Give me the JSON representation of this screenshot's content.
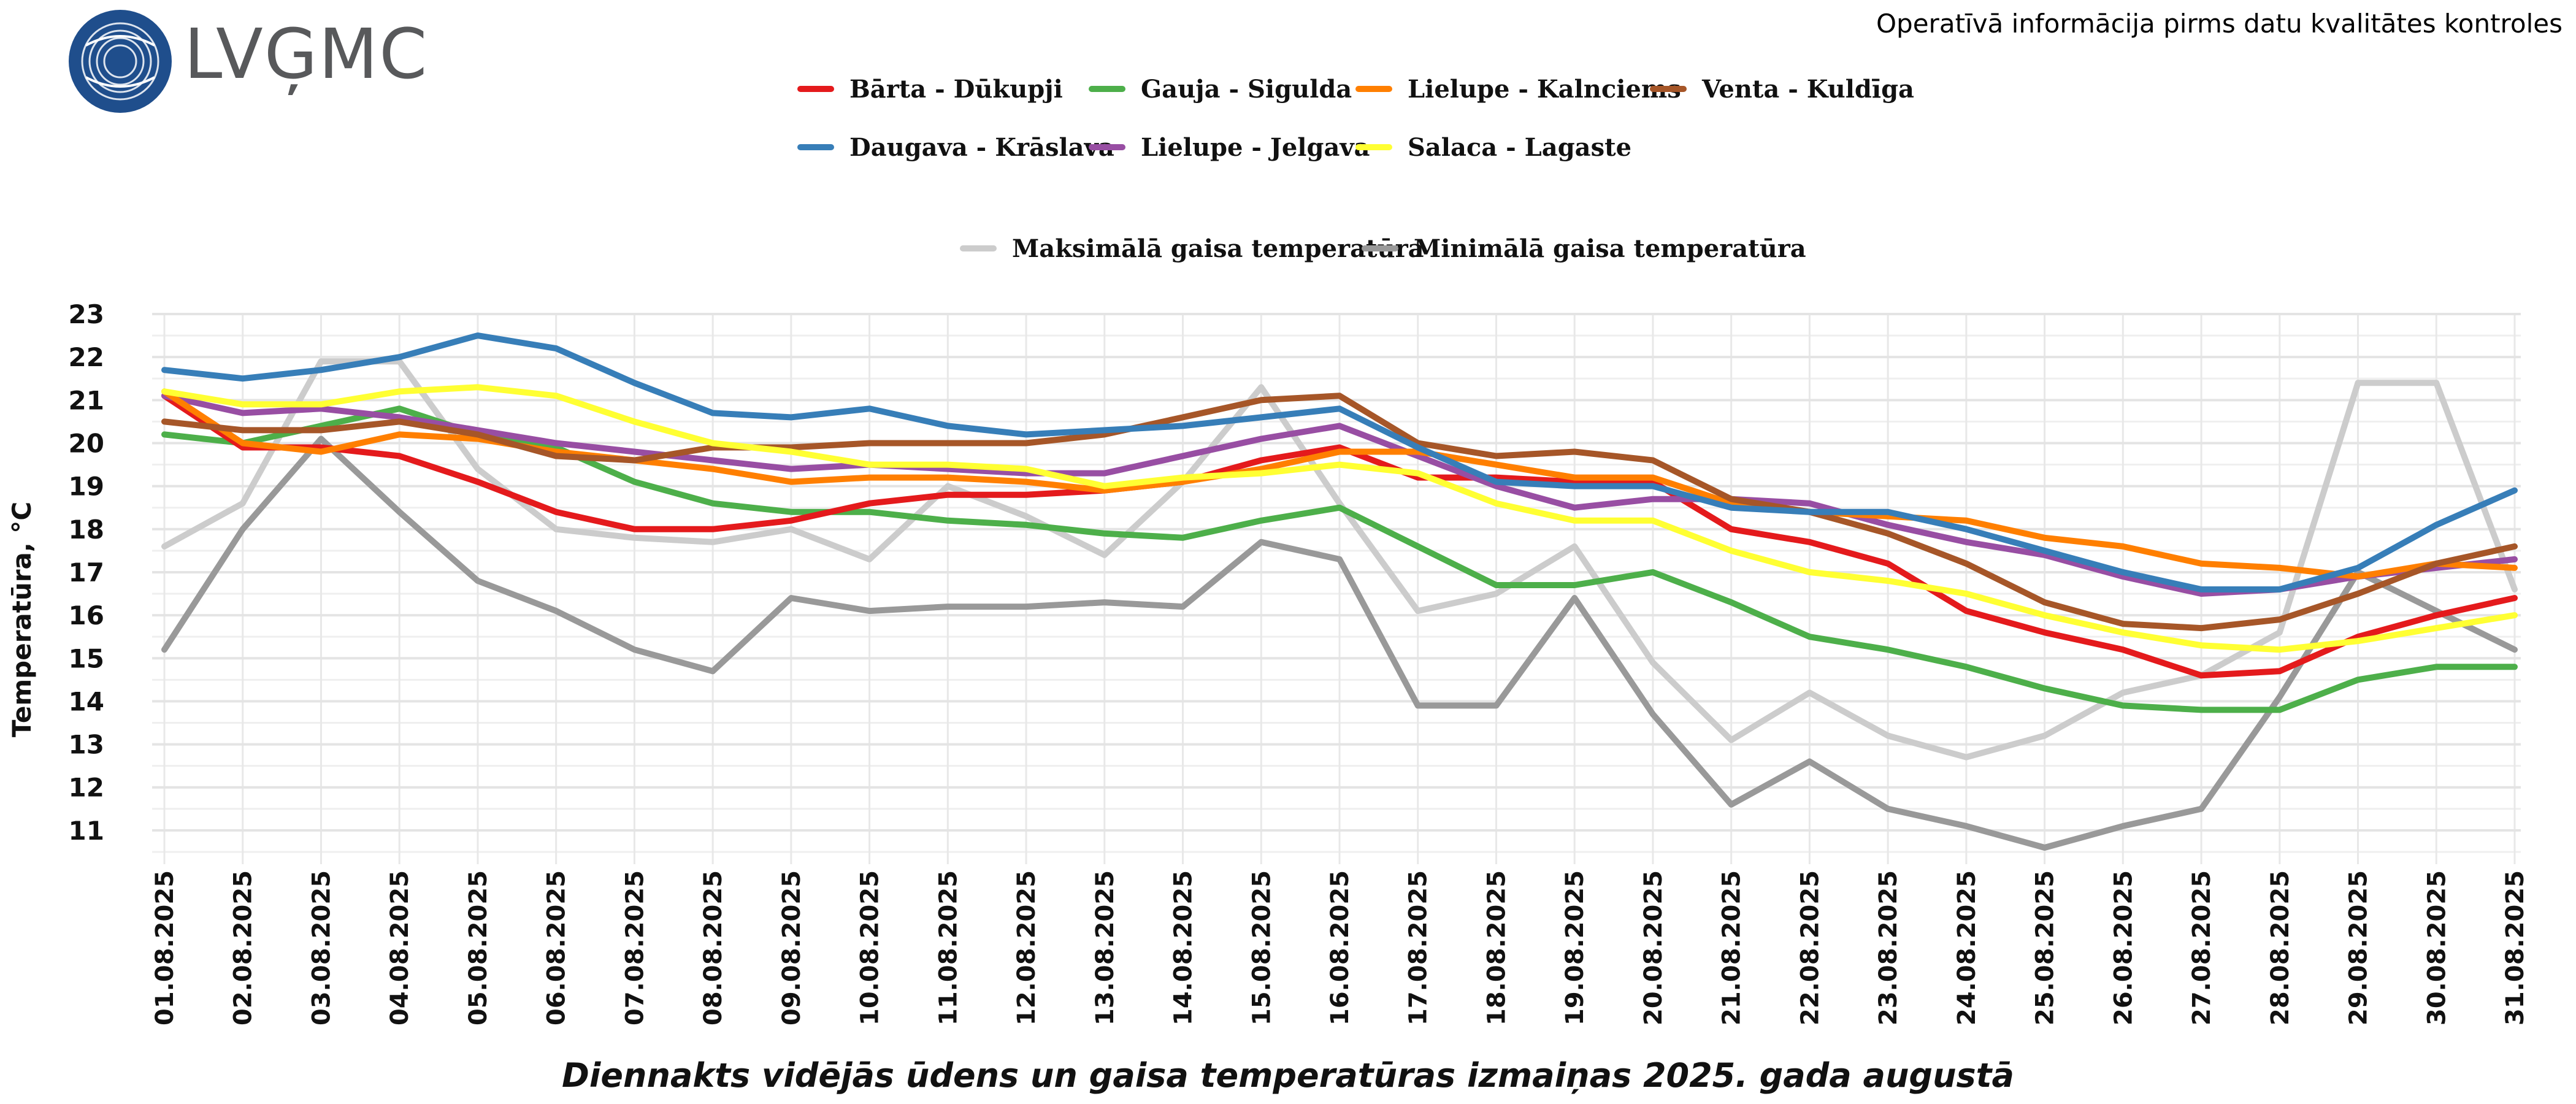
{
  "header": {
    "logo_text": "LVĢMC",
    "subtitle": "Operatīvā informācija pirms datu kvalitātes kontroles"
  },
  "chart_data": {
    "type": "line",
    "title": "Diennakts vidējās ūdens un gaisa temperatūras izmaiņas 2025. gada augustā",
    "ylabel": "Temperatūra, °C",
    "xlabel": "",
    "ylim": [
      10.3,
      23
    ],
    "yticks": [
      11,
      12,
      13,
      14,
      15,
      16,
      17,
      18,
      19,
      20,
      21,
      22,
      23
    ],
    "grid": true,
    "legend_position": "top-center",
    "categories": [
      "01.08.2025",
      "02.08.2025",
      "03.08.2025",
      "04.08.2025",
      "05.08.2025",
      "06.08.2025",
      "07.08.2025",
      "08.08.2025",
      "09.08.2025",
      "10.08.2025",
      "11.08.2025",
      "12.08.2025",
      "13.08.2025",
      "14.08.2025",
      "15.08.2025",
      "16.08.2025",
      "17.08.2025",
      "18.08.2025",
      "19.08.2025",
      "20.08.2025",
      "21.08.2025",
      "22.08.2025",
      "23.08.2025",
      "24.08.2025",
      "25.08.2025",
      "26.08.2025",
      "27.08.2025",
      "28.08.2025",
      "29.08.2025",
      "30.08.2025",
      "31.08.2025"
    ],
    "series": [
      {
        "name": "Maksimālā gaisa temperatūra",
        "color": "#cccccc",
        "group": "air",
        "values": [
          17.6,
          18.6,
          21.9,
          21.9,
          19.4,
          18.0,
          17.8,
          17.7,
          18.0,
          17.3,
          19.0,
          18.3,
          17.4,
          19.1,
          21.3,
          18.6,
          16.1,
          16.5,
          17.6,
          14.9,
          13.1,
          14.2,
          13.2,
          12.7,
          13.2,
          14.2,
          14.6,
          15.6,
          21.4,
          21.4,
          16.6
        ]
      },
      {
        "name": "Minimālā gaisa temperatūra",
        "color": "#999999",
        "group": "air",
        "values": [
          15.2,
          18.0,
          20.1,
          18.4,
          16.8,
          16.1,
          15.2,
          14.7,
          16.4,
          16.1,
          16.2,
          16.2,
          16.3,
          16.2,
          17.7,
          17.3,
          13.9,
          13.9,
          16.4,
          13.7,
          11.6,
          12.6,
          11.5,
          11.1,
          10.6,
          11.1,
          11.5,
          14.1,
          17.0,
          16.1,
          15.2
        ]
      },
      {
        "name": "Gauja - Sigulda",
        "color": "#4daf4a",
        "group": "water",
        "values": [
          20.2,
          20.0,
          20.4,
          20.8,
          20.2,
          19.9,
          19.1,
          18.6,
          18.4,
          18.4,
          18.2,
          18.1,
          17.9,
          17.8,
          18.2,
          18.5,
          17.6,
          16.7,
          16.7,
          17.0,
          16.3,
          15.5,
          15.2,
          14.8,
          14.3,
          13.9,
          13.8,
          13.8,
          14.5,
          14.8,
          14.8
        ]
      },
      {
        "name": "Bārta - Dūkupji",
        "color": "#e41a1c",
        "group": "water",
        "values": [
          21.1,
          19.9,
          19.9,
          19.7,
          19.1,
          18.4,
          18.0,
          18.0,
          18.2,
          18.6,
          18.8,
          18.8,
          18.9,
          19.1,
          19.6,
          19.9,
          19.2,
          19.2,
          19.1,
          19.1,
          18.0,
          17.7,
          17.2,
          16.1,
          15.6,
          15.2,
          14.6,
          14.7,
          15.5,
          16.0,
          16.4
        ]
      },
      {
        "name": "Lielupe - Jelgava",
        "color": "#984ea3",
        "group": "water",
        "values": [
          21.1,
          20.7,
          20.8,
          20.6,
          20.3,
          20.0,
          19.8,
          19.6,
          19.4,
          19.5,
          19.4,
          19.3,
          19.3,
          19.7,
          20.1,
          20.4,
          19.7,
          19.0,
          18.5,
          18.7,
          18.7,
          18.6,
          18.1,
          17.7,
          17.4,
          16.9,
          16.5,
          16.6,
          16.9,
          17.1,
          17.3
        ]
      },
      {
        "name": "Lielupe - Kalnciems",
        "color": "#ff7f00",
        "group": "water",
        "values": [
          21.2,
          20.0,
          19.8,
          20.2,
          20.1,
          19.8,
          19.6,
          19.4,
          19.1,
          19.2,
          19.2,
          19.1,
          18.9,
          19.1,
          19.4,
          19.8,
          19.8,
          19.5,
          19.2,
          19.2,
          18.6,
          18.4,
          18.3,
          18.2,
          17.8,
          17.6,
          17.2,
          17.1,
          16.9,
          17.2,
          17.1
        ]
      },
      {
        "name": "Venta - Kuldīga",
        "color": "#a65628",
        "group": "water",
        "values": [
          20.5,
          20.3,
          20.3,
          20.5,
          20.2,
          19.7,
          19.6,
          19.9,
          19.9,
          20.0,
          20.0,
          20.0,
          20.2,
          20.6,
          21.0,
          21.1,
          20.0,
          19.7,
          19.8,
          19.6,
          18.7,
          18.4,
          17.9,
          17.2,
          16.3,
          15.8,
          15.7,
          15.9,
          16.5,
          17.2,
          17.6
        ]
      },
      {
        "name": "Daugava - Krāslava",
        "color": "#377eb8",
        "group": "water",
        "values": [
          21.7,
          21.5,
          21.7,
          22.0,
          22.5,
          22.2,
          21.4,
          20.7,
          20.6,
          20.8,
          20.4,
          20.2,
          20.3,
          20.4,
          20.6,
          20.8,
          19.9,
          19.1,
          19.0,
          19.0,
          18.5,
          18.4,
          18.4,
          18.0,
          17.5,
          17.0,
          16.6,
          16.6,
          17.1,
          18.1,
          18.9
        ]
      },
      {
        "name": "Salaca - Lagaste",
        "color": "#ffff33",
        "group": "water",
        "values": [
          21.2,
          20.9,
          20.9,
          21.2,
          21.3,
          21.1,
          20.5,
          20.0,
          19.8,
          19.5,
          19.5,
          19.4,
          19.0,
          19.2,
          19.3,
          19.5,
          19.3,
          18.6,
          18.2,
          18.2,
          17.5,
          17.0,
          16.8,
          16.5,
          16.0,
          15.6,
          15.3,
          15.2,
          15.4,
          15.7,
          16.0
        ]
      }
    ],
    "legend_rows": [
      [
        "Bārta - Dūkupji",
        "Gauja - Sigulda",
        "Lielupe - Kalnciems",
        "Venta - Kuldīga"
      ],
      [
        "Daugava - Krāslava",
        "Lielupe - Jelgava",
        "Salaca - Lagaste"
      ],
      [
        "Maksimālā gaisa temperatūra",
        "Minimālā gaisa temperatūra"
      ]
    ]
  }
}
